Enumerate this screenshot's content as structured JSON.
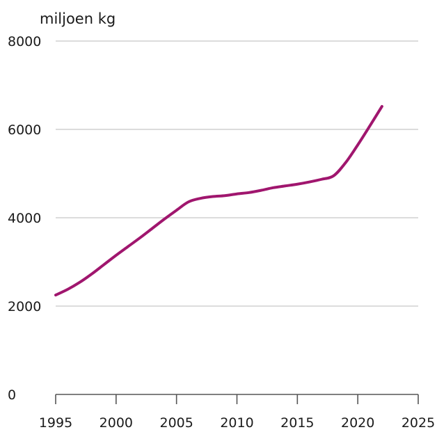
{
  "chart_data": {
    "type": "line",
    "title": "",
    "xlabel": "",
    "ylabel": "miljoen kg",
    "xlim": [
      1995,
      2025
    ],
    "ylim": [
      0,
      8000
    ],
    "x_ticks": [
      "1995",
      "2000",
      "2005",
      "2010",
      "2015",
      "2020",
      "2025"
    ],
    "y_ticks": [
      "0",
      "2000",
      "4000",
      "6000",
      "8000"
    ],
    "grid": true,
    "legend": "none",
    "series": [
      {
        "color": "#a0166e",
        "x": [
          1995,
          1996,
          1997,
          1998,
          1999,
          2000,
          2001,
          2002,
          2003,
          2004,
          2005,
          2006,
          2007,
          2008,
          2009,
          2010,
          2011,
          2012,
          2013,
          2014,
          2015,
          2016,
          2017,
          2018,
          2019,
          2020,
          2021,
          2022
        ],
        "y": [
          2250,
          2380,
          2540,
          2730,
          2940,
          3150,
          3350,
          3550,
          3760,
          3970,
          4170,
          4360,
          4440,
          4480,
          4500,
          4540,
          4570,
          4620,
          4680,
          4720,
          4760,
          4810,
          4870,
          4950,
          5250,
          5650,
          6080,
          6520
        ]
      }
    ]
  }
}
